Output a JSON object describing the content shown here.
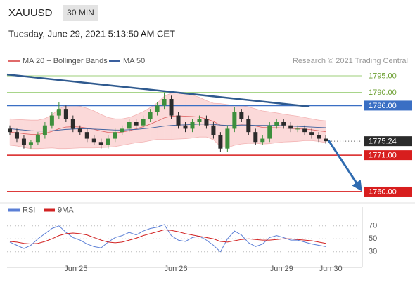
{
  "header": {
    "symbol": "XAUUSD",
    "timeframe": "30 MIN",
    "date": "Tuesday, June 29, 2021 5:13:50 AM CET",
    "source": "Research © 2021 Trading Central"
  },
  "chart_data": [
    {
      "type": "candlestick",
      "open": [
        1779,
        1778,
        1776,
        1774,
        1775,
        1777,
        1780,
        1783,
        1785,
        1782,
        1779,
        1778,
        1776,
        1775,
        1774,
        1776,
        1778,
        1779,
        1781,
        1780,
        1782,
        1784,
        1786,
        1788,
        1783,
        1780,
        1779,
        1781,
        1782,
        1780,
        1777,
        1773,
        1779,
        1784,
        1782,
        1778,
        1775,
        1776,
        1780,
        1781,
        1780,
        1779,
        1779,
        1778,
        1777,
        1776
      ],
      "high": [
        1780,
        1779,
        1777,
        1775.5,
        1778,
        1781,
        1784,
        1787,
        1786,
        1783,
        1780,
        1779,
        1777,
        1776,
        1777,
        1779,
        1780,
        1782,
        1782,
        1783,
        1785,
        1787,
        1790,
        1789,
        1784,
        1781,
        1782,
        1783,
        1783,
        1781,
        1778,
        1780,
        1785.5,
        1785,
        1783,
        1779,
        1777,
        1781,
        1782,
        1782,
        1781,
        1780,
        1780,
        1779,
        1778,
        1777
      ],
      "low": [
        1777,
        1775,
        1773,
        1773,
        1774,
        1776,
        1779,
        1782,
        1781,
        1778,
        1777,
        1775,
        1774,
        1773,
        1773,
        1775,
        1777,
        1778,
        1779,
        1779,
        1781,
        1783,
        1785,
        1782,
        1779,
        1778,
        1778,
        1780,
        1779,
        1776,
        1772,
        1772,
        1778,
        1781,
        1777,
        1774,
        1774,
        1775,
        1779,
        1779,
        1778,
        1778,
        1777,
        1776,
        1775,
        1774.5
      ],
      "close": [
        1778,
        1776,
        1774,
        1775,
        1777,
        1780,
        1783,
        1785,
        1782,
        1779,
        1778,
        1776,
        1775,
        1774,
        1776,
        1778,
        1779,
        1781,
        1780,
        1782,
        1784,
        1786,
        1788,
        1783,
        1780,
        1779,
        1781,
        1782,
        1780,
        1777,
        1773,
        1779,
        1784,
        1782,
        1778,
        1775,
        1776,
        1780,
        1781,
        1780,
        1779,
        1779,
        1778,
        1777,
        1776,
        1775.24
      ],
      "up_color": "#3d8f3d",
      "down_color": "#2b2b2b",
      "series": [
        {
          "name": "MA 20 + Bollinger Bands",
          "color": "#e06a6a",
          "band_color": "#fbd9d9",
          "values": [
            1778,
            1777.8,
            1777.5,
            1777.3,
            1777.3,
            1777.6,
            1778.2,
            1779,
            1779.5,
            1779.6,
            1779.5,
            1779.2,
            1778.8,
            1778.3,
            1777.9,
            1777.8,
            1778,
            1778.4,
            1779,
            1779.6,
            1780.4,
            1781.3,
            1782.3,
            1782.8,
            1782.9,
            1782.8,
            1782.7,
            1782.5,
            1782,
            1781.2,
            1780.1,
            1779.8,
            1780,
            1780.2,
            1780.1,
            1779.8,
            1779.4,
            1779.3,
            1779.3,
            1779.2,
            1779.1,
            1779,
            1778.9,
            1778.7,
            1778.4,
            1778.1
          ],
          "upper": [
            1782,
            1781.8,
            1781.7,
            1781.6,
            1781.6,
            1782.1,
            1783.2,
            1785,
            1786,
            1786.1,
            1785.8,
            1785.2,
            1784.4,
            1783.3,
            1782.4,
            1782,
            1782,
            1782.4,
            1783.2,
            1784.2,
            1785.4,
            1786.8,
            1788.8,
            1789.8,
            1789.9,
            1789.6,
            1789.2,
            1788.5,
            1787.5,
            1786.7,
            1786.6,
            1786.3,
            1786,
            1786,
            1785.6,
            1785,
            1784.4,
            1784.1,
            1783.8,
            1783.4,
            1783.1,
            1782.8,
            1782.4,
            1782,
            1781.6,
            1781.4
          ],
          "lower": [
            1774,
            1773.8,
            1773.3,
            1773,
            1773,
            1773.1,
            1773.2,
            1773,
            1773,
            1773.1,
            1773.2,
            1773.2,
            1773.2,
            1773.3,
            1773.4,
            1773.6,
            1774,
            1774.4,
            1774.8,
            1775,
            1775.4,
            1775.8,
            1775.8,
            1775.8,
            1775.9,
            1776,
            1776.2,
            1776.5,
            1776.5,
            1775.7,
            1773.6,
            1773.3,
            1774,
            1774.4,
            1774.6,
            1774.6,
            1774.4,
            1774.5,
            1774.8,
            1775,
            1775.1,
            1775.2,
            1775.4,
            1775.4,
            1775.2,
            1774.8
          ]
        },
        {
          "name": "MA 50",
          "color": "#3a5f9e",
          "values": [
            1779,
            1778.8,
            1778.6,
            1778.4,
            1778.3,
            1778.3,
            1778.4,
            1778.6,
            1778.8,
            1778.9,
            1779,
            1779,
            1778.9,
            1778.8,
            1778.7,
            1778.6,
            1778.6,
            1778.7,
            1778.8,
            1779,
            1779.2,
            1779.5,
            1779.8,
            1780,
            1780.1,
            1780.2,
            1780.3,
            1780.4,
            1780.4,
            1780.3,
            1780.1,
            1780,
            1780,
            1780.1,
            1780.1,
            1780,
            1780,
            1780,
            1780,
            1779.9,
            1779.8,
            1779.7,
            1779.6,
            1779.5,
            1779.4,
            1779.3
          ]
        }
      ],
      "levels": [
        {
          "value": 1795,
          "label": "1795.00",
          "color": "#9ccf7a",
          "text_color": "#6a9e2e",
          "box": false
        },
        {
          "value": 1790,
          "label": "1790.00",
          "color": "#9ccf7a",
          "text_color": "#6a9e2e",
          "box": false
        },
        {
          "value": 1786,
          "label": "1786.00",
          "color": "#3a6fc4",
          "box": true
        },
        {
          "value": 1771,
          "label": "1771.00",
          "color": "#d81e1e",
          "box": true
        },
        {
          "value": 1760,
          "label": "1760.00",
          "color": "#d81e1e",
          "box": true
        }
      ],
      "last_price": {
        "value": 1775.24,
        "label": "1775.24",
        "color": "#2b2b2b"
      },
      "trendline": {
        "x": [
          -0.4,
          42.7
        ],
        "values": [
          1795.4,
          1785.7
        ],
        "color": "#2f5a8f"
      },
      "arrow": {
        "x": [
          45.4,
          50.0
        ],
        "values": [
          1775.5,
          1760.6
        ],
        "color": "#2f6bb0"
      },
      "xlim": [
        -0.4,
        50.2
      ],
      "ylim": [
        1757.45,
        1797.76
      ]
    },
    {
      "type": "line",
      "series": [
        {
          "name": "RSI",
          "color": "#5b7fd6",
          "values": [
            45,
            40,
            35,
            40,
            50,
            58,
            66,
            70,
            60,
            52,
            48,
            42,
            38,
            36,
            45,
            52,
            55,
            60,
            56,
            62,
            66,
            68,
            72,
            55,
            48,
            46,
            52,
            54,
            48,
            40,
            30,
            50,
            62,
            56,
            44,
            38,
            42,
            52,
            55,
            52,
            48,
            48,
            45,
            42,
            40,
            38
          ]
        },
        {
          "name": "9MA",
          "color": "#d22222",
          "values": [
            46,
            45,
            43,
            42,
            43,
            46,
            50,
            55,
            58,
            59,
            58,
            56,
            52,
            48,
            45,
            44,
            45,
            48,
            51,
            55,
            58,
            61,
            64,
            63,
            61,
            58,
            56,
            54,
            52,
            50,
            46,
            45,
            47,
            49,
            50,
            49,
            48,
            48,
            49,
            50,
            50,
            49,
            48,
            47,
            45,
            43
          ]
        }
      ],
      "xlim": [
        -0.4,
        50.2
      ],
      "ylim": [
        7,
        99
      ],
      "yticks": [
        30,
        50,
        70
      ],
      "grid": true,
      "xticks": [
        {
          "value": 9.4,
          "label": "Jun 25"
        },
        {
          "value": 23.65,
          "label": "Jun 26"
        },
        {
          "value": 38.7,
          "label": "Jun 29"
        },
        {
          "value": 45.7,
          "label": "Jun 30"
        }
      ]
    }
  ]
}
